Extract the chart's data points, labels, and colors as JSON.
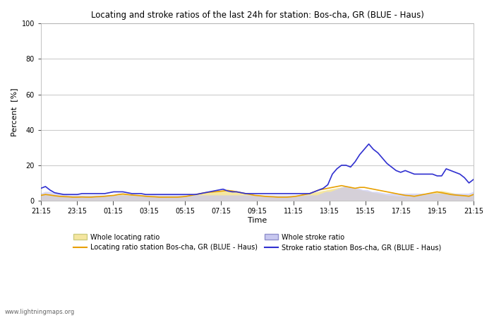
{
  "title": "Locating and stroke ratios of the last 24h for station: Bos-cha, GR (BLUE - Haus)",
  "ylabel": "Percent  [%]",
  "xlabel": "Time",
  "xlim": [
    0,
    96
  ],
  "ylim": [
    0,
    100
  ],
  "yticks": [
    0,
    20,
    40,
    60,
    80,
    100
  ],
  "xtick_labels": [
    "21:15",
    "23:15",
    "01:15",
    "03:15",
    "05:15",
    "07:15",
    "09:15",
    "11:15",
    "13:15",
    "15:15",
    "17:15",
    "19:15",
    "21:15"
  ],
  "background_color": "#ffffff",
  "plot_bg_color": "#ffffff",
  "grid_color": "#cccccc",
  "watermark": "www.lightningmaps.org",
  "whole_locating_fill_color": "#f5e6a0",
  "whole_stroke_fill_color": "#c8c8f0",
  "locating_line_color": "#e8a000",
  "stroke_line_color": "#3030d0",
  "whole_locating_ratio": [
    3,
    3.5,
    3.2,
    2.8,
    2.5,
    2.3,
    2.2,
    2.0,
    2.0,
    2.1,
    2.0,
    2.0,
    2.2,
    2.3,
    2.5,
    2.8,
    3.0,
    3.5,
    3.8,
    3.5,
    3.2,
    3.0,
    2.8,
    2.5,
    2.3,
    2.2,
    2.0,
    2.0,
    2.0,
    2.0,
    2.0,
    2.2,
    2.5,
    3.0,
    3.5,
    4.0,
    4.5,
    4.8,
    5.0,
    5.2,
    5.5,
    5.8,
    5.5,
    5.0,
    4.5,
    4.0,
    3.5,
    3.0,
    2.8,
    2.5,
    2.3,
    2.2,
    2.0,
    2.0,
    2.0,
    2.2,
    2.5,
    3.0,
    3.5,
    4.0,
    4.5,
    5.0,
    5.5,
    6.0,
    6.5,
    7.0,
    7.5,
    7.5,
    7.0,
    6.5,
    6.0,
    5.5,
    5.0,
    4.5,
    4.0,
    3.5,
    3.0,
    2.8,
    2.5,
    2.3,
    2.2,
    2.0,
    2.5,
    3.0,
    3.5,
    4.0,
    4.5,
    5.0,
    5.5,
    5.0,
    4.5,
    4.0,
    3.5,
    3.2,
    3.0,
    3.5
  ],
  "whole_stroke_ratio": [
    4,
    5,
    5,
    4,
    4,
    3.5,
    3,
    3,
    3,
    3,
    3,
    3,
    3,
    3,
    3,
    3,
    3,
    3,
    3,
    3,
    3,
    3,
    3,
    3,
    3,
    3,
    3,
    3,
    3,
    3,
    3,
    3,
    3,
    3,
    3,
    3,
    3,
    3,
    3,
    3,
    3,
    3,
    3,
    3,
    3,
    3,
    3,
    3,
    3,
    3,
    3,
    3,
    3,
    3,
    3,
    3,
    3,
    3,
    3,
    3,
    3,
    4,
    5,
    5,
    6,
    7,
    8,
    8,
    7,
    7,
    6,
    6,
    5,
    5,
    4.5,
    4,
    4,
    4,
    4,
    4,
    4,
    4,
    4,
    4,
    4,
    4,
    4,
    4,
    4,
    4,
    4,
    4,
    4,
    4,
    5
  ],
  "locating_ratio": [
    3,
    3.5,
    3.2,
    2.8,
    2.5,
    2.3,
    2.2,
    2.0,
    2.0,
    2.1,
    2.0,
    2.0,
    2.2,
    2.3,
    2.5,
    2.8,
    3.0,
    3.5,
    3.8,
    3.5,
    3.2,
    3.0,
    2.8,
    2.5,
    2.3,
    2.2,
    2.0,
    2.0,
    2.0,
    2.0,
    2.0,
    2.2,
    2.5,
    3.0,
    3.5,
    4.0,
    4.5,
    4.8,
    5.0,
    5.2,
    5.5,
    5.8,
    5.5,
    5.0,
    4.5,
    4.0,
    3.5,
    3.0,
    2.8,
    2.5,
    2.3,
    2.2,
    2.0,
    2.0,
    2.0,
    2.2,
    2.5,
    3.0,
    3.5,
    4.0,
    5.0,
    6.0,
    6.5,
    7.0,
    7.5,
    8.0,
    8.5,
    8.0,
    7.5,
    7.0,
    7.5,
    7.5,
    7.0,
    6.5,
    6.0,
    5.5,
    5.0,
    4.5,
    4.0,
    3.5,
    3.0,
    2.8,
    2.5,
    3.0,
    3.5,
    4.0,
    4.5,
    5.0,
    4.5,
    4.0,
    3.5,
    3.2,
    3.0,
    2.8,
    2.5,
    3.5
  ],
  "stroke_ratio": [
    7,
    8,
    6,
    4.5,
    4,
    3.5,
    3.5,
    3.5,
    3.5,
    4,
    4,
    4,
    4,
    4,
    4,
    4.5,
    5,
    5,
    5,
    4.5,
    4,
    4,
    4,
    3.5,
    3.5,
    3.5,
    3.5,
    3.5,
    3.5,
    3.5,
    3.5,
    3.5,
    3.5,
    3.5,
    3.5,
    4,
    4.5,
    5,
    5.5,
    6,
    6.5,
    5.5,
    5,
    5,
    4.5,
    4,
    4,
    4,
    4,
    4,
    4,
    4,
    4,
    4,
    4,
    4,
    4,
    4,
    4,
    4,
    5,
    6,
    7,
    9,
    15,
    18,
    20,
    20,
    19,
    22,
    26,
    29,
    32,
    29,
    27,
    24,
    21,
    19,
    17,
    16,
    17,
    16,
    15,
    15,
    15,
    15,
    15,
    14,
    14,
    18,
    17,
    16,
    15,
    13,
    10,
    12
  ]
}
